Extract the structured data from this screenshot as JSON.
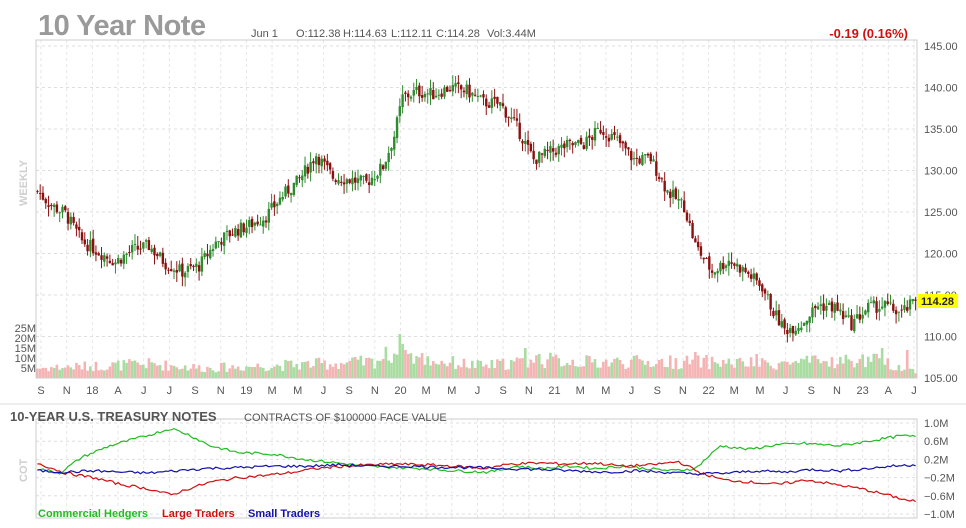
{
  "title": "10 Year Note",
  "ohlc": {
    "date": "Jun 1",
    "open": "O:112.38",
    "high": "H:114.63",
    "low": "L:112.11",
    "close": "C:114.28",
    "volume": "Vol:3.44M"
  },
  "change": "-0.19 (0.16%)",
  "period_label": "WEEKLY",
  "last_price_label": "114.28",
  "cot": {
    "title": "10-YEAR U.S. TREASURY NOTES",
    "subtitle": "CONTRACTS OF $100000 FACE VALUE",
    "side_label": "COT",
    "legend": [
      "Commercial Hedgers",
      "Large Traders",
      "Small Traders"
    ]
  },
  "colors": {
    "up": "#2e8b2e",
    "down": "#8b1010",
    "vol_up": "#a8dca0",
    "vol_down": "#f4b4b4",
    "commercial": "#22bb22",
    "large": "#cc1111",
    "small": "#1111aa",
    "price_badge": "#ffff00"
  },
  "chart_data": [
    {
      "type": "candlestick",
      "title": "10 Year Note",
      "x_tick_labels": [
        "S",
        "N",
        "18",
        "A",
        "J",
        "J",
        "S",
        "N",
        "19",
        "M",
        "M",
        "J",
        "S",
        "N",
        "20",
        "M",
        "M",
        "J",
        "S",
        "N",
        "21",
        "M",
        "M",
        "J",
        "S",
        "N",
        "22",
        "M",
        "M",
        "J",
        "S",
        "N",
        "23",
        "A",
        "J"
      ],
      "y_ticks": [
        "145.00",
        "140.00",
        "135.00",
        "130.00",
        "125.00",
        "120.00",
        "115.00",
        "110.00",
        "105.00"
      ],
      "ylim": [
        105,
        145
      ],
      "volume_ticks": [
        "25M",
        "20M",
        "15M",
        "10M",
        "5M"
      ],
      "volume_ylim": [
        0,
        30
      ],
      "grid": true,
      "close_anchors": [
        [
          0,
          127.5
        ],
        [
          5,
          125.8
        ],
        [
          10,
          124.8
        ],
        [
          16,
          121.5
        ],
        [
          22,
          120.2
        ],
        [
          28,
          119.0
        ],
        [
          34,
          120.4
        ],
        [
          40,
          120.9
        ],
        [
          46,
          118.8
        ],
        [
          52,
          117.8
        ],
        [
          58,
          118.5
        ],
        [
          64,
          121.3
        ],
        [
          70,
          122.6
        ],
        [
          76,
          123.4
        ],
        [
          82,
          124.5
        ],
        [
          88,
          127.0
        ],
        [
          94,
          128.9
        ],
        [
          100,
          131.9
        ],
        [
          106,
          129.2
        ],
        [
          112,
          128.9
        ],
        [
          118,
          128.5
        ],
        [
          124,
          130.5
        ],
        [
          128,
          134.2
        ],
        [
          131,
          138.8
        ],
        [
          136,
          139.5
        ],
        [
          142,
          139.2
        ],
        [
          148,
          140.0
        ],
        [
          154,
          139.6
        ],
        [
          160,
          138.2
        ],
        [
          166,
          138.0
        ],
        [
          172,
          135.2
        ],
        [
          178,
          131.3
        ],
        [
          184,
          132.2
        ],
        [
          190,
          133.0
        ],
        [
          196,
          133.2
        ],
        [
          202,
          135.0
        ],
        [
          208,
          133.6
        ],
        [
          214,
          131.3
        ],
        [
          220,
          131.4
        ],
        [
          226,
          127.5
        ],
        [
          232,
          125.7
        ],
        [
          236,
          121.0
        ],
        [
          242,
          117.8
        ],
        [
          248,
          119.2
        ],
        [
          254,
          117.8
        ],
        [
          260,
          116.0
        ],
        [
          264,
          113.0
        ],
        [
          268,
          110.8
        ],
        [
          274,
          111.5
        ],
        [
          280,
          113.8
        ],
        [
          286,
          113.5
        ],
        [
          292,
          111.5
        ],
        [
          298,
          113.5
        ],
        [
          304,
          113.7
        ],
        [
          310,
          112.8
        ],
        [
          315,
          114.28
        ]
      ],
      "volume_anchors": [
        [
          0,
          5
        ],
        [
          20,
          6
        ],
        [
          40,
          7
        ],
        [
          60,
          5
        ],
        [
          80,
          6
        ],
        [
          100,
          7
        ],
        [
          120,
          8
        ],
        [
          128,
          13
        ],
        [
          140,
          9
        ],
        [
          160,
          6
        ],
        [
          180,
          9
        ],
        [
          200,
          8
        ],
        [
          220,
          8
        ],
        [
          240,
          8
        ],
        [
          260,
          7
        ],
        [
          280,
          8
        ],
        [
          300,
          9
        ],
        [
          315,
          3.44
        ]
      ],
      "volume_spikes": [
        [
          130,
          22
        ],
        [
          132,
          14
        ],
        [
          175,
          15
        ],
        [
          180,
          12
        ],
        [
          198,
          11
        ],
        [
          236,
          13
        ],
        [
          246,
          9
        ],
        [
          258,
          12
        ],
        [
          303,
          15
        ],
        [
          312,
          14
        ]
      ]
    },
    {
      "type": "line",
      "title": "10-YEAR U.S. TREASURY NOTES",
      "subtitle": "CONTRACTS OF $100000 FACE VALUE",
      "y_ticks": [
        "1.0M",
        "0.6M",
        "0.2M",
        "−0.2M",
        "−0.6M",
        "−1.0M"
      ],
      "ylim": [
        -1.0,
        1.0
      ],
      "grid": true,
      "series": [
        {
          "name": "Commercial Hedgers",
          "values_anchors": [
            [
              0,
              0.0
            ],
            [
              8,
              -0.1
            ],
            [
              16,
              0.25
            ],
            [
              26,
              0.5
            ],
            [
              38,
              0.7
            ],
            [
              48,
              0.88
            ],
            [
              54,
              0.75
            ],
            [
              62,
              0.5
            ],
            [
              72,
              0.35
            ],
            [
              84,
              0.32
            ],
            [
              96,
              0.2
            ],
            [
              108,
              0.12
            ],
            [
              118,
              0.05
            ],
            [
              126,
              0.03
            ],
            [
              138,
              0.0
            ],
            [
              150,
              -0.05
            ],
            [
              162,
              -0.08
            ],
            [
              172,
              0.05
            ],
            [
              180,
              0.0
            ],
            [
              192,
              0.05
            ],
            [
              200,
              0.0
            ],
            [
              210,
              0.05
            ],
            [
              218,
              0.0
            ],
            [
              228,
              -0.05
            ],
            [
              236,
              0.0
            ],
            [
              245,
              0.5
            ],
            [
              255,
              0.42
            ],
            [
              265,
              0.52
            ],
            [
              275,
              0.55
            ],
            [
              288,
              0.5
            ],
            [
              300,
              0.62
            ],
            [
              310,
              0.72
            ],
            [
              315,
              0.7
            ]
          ]
        },
        {
          "name": "Large Traders",
          "values_anchors": [
            [
              0,
              0.12
            ],
            [
              10,
              -0.1
            ],
            [
              20,
              -0.2
            ],
            [
              30,
              -0.35
            ],
            [
              40,
              -0.45
            ],
            [
              48,
              -0.58
            ],
            [
              54,
              -0.45
            ],
            [
              62,
              -0.3
            ],
            [
              72,
              -0.2
            ],
            [
              82,
              -0.15
            ],
            [
              92,
              -0.08
            ],
            [
              100,
              0.0
            ],
            [
              110,
              0.05
            ],
            [
              120,
              0.08
            ],
            [
              128,
              0.1
            ],
            [
              140,
              0.08
            ],
            [
              150,
              0.05
            ],
            [
              160,
              0.0
            ],
            [
              170,
              0.1
            ],
            [
              180,
              0.12
            ],
            [
              190,
              0.1
            ],
            [
              200,
              0.12
            ],
            [
              210,
              0.05
            ],
            [
              220,
              0.08
            ],
            [
              230,
              0.15
            ],
            [
              238,
              -0.1
            ],
            [
              246,
              -0.25
            ],
            [
              256,
              -0.3
            ],
            [
              266,
              -0.35
            ],
            [
              276,
              -0.25
            ],
            [
              286,
              -0.35
            ],
            [
              296,
              -0.45
            ],
            [
              306,
              -0.6
            ],
            [
              312,
              -0.7
            ],
            [
              315,
              -0.72
            ]
          ]
        },
        {
          "name": "Small Traders",
          "values_anchors": [
            [
              0,
              -0.05
            ],
            [
              10,
              -0.08
            ],
            [
              20,
              -0.05
            ],
            [
              30,
              -0.08
            ],
            [
              40,
              -0.1
            ],
            [
              50,
              -0.05
            ],
            [
              60,
              0.0
            ],
            [
              72,
              0.02
            ],
            [
              84,
              0.05
            ],
            [
              96,
              0.05
            ],
            [
              108,
              0.08
            ],
            [
              120,
              0.05
            ],
            [
              132,
              0.05
            ],
            [
              144,
              0.03
            ],
            [
              156,
              0.02
            ],
            [
              168,
              0.0
            ],
            [
              180,
              -0.02
            ],
            [
              192,
              -0.05
            ],
            [
              204,
              -0.08
            ],
            [
              214,
              -0.05
            ],
            [
              224,
              -0.08
            ],
            [
              236,
              -0.12
            ],
            [
              248,
              -0.1
            ],
            [
              258,
              -0.05
            ],
            [
              268,
              -0.08
            ],
            [
              278,
              -0.02
            ],
            [
              288,
              -0.05
            ],
            [
              298,
              0.0
            ],
            [
              306,
              0.05
            ],
            [
              315,
              0.08
            ]
          ]
        }
      ]
    }
  ]
}
